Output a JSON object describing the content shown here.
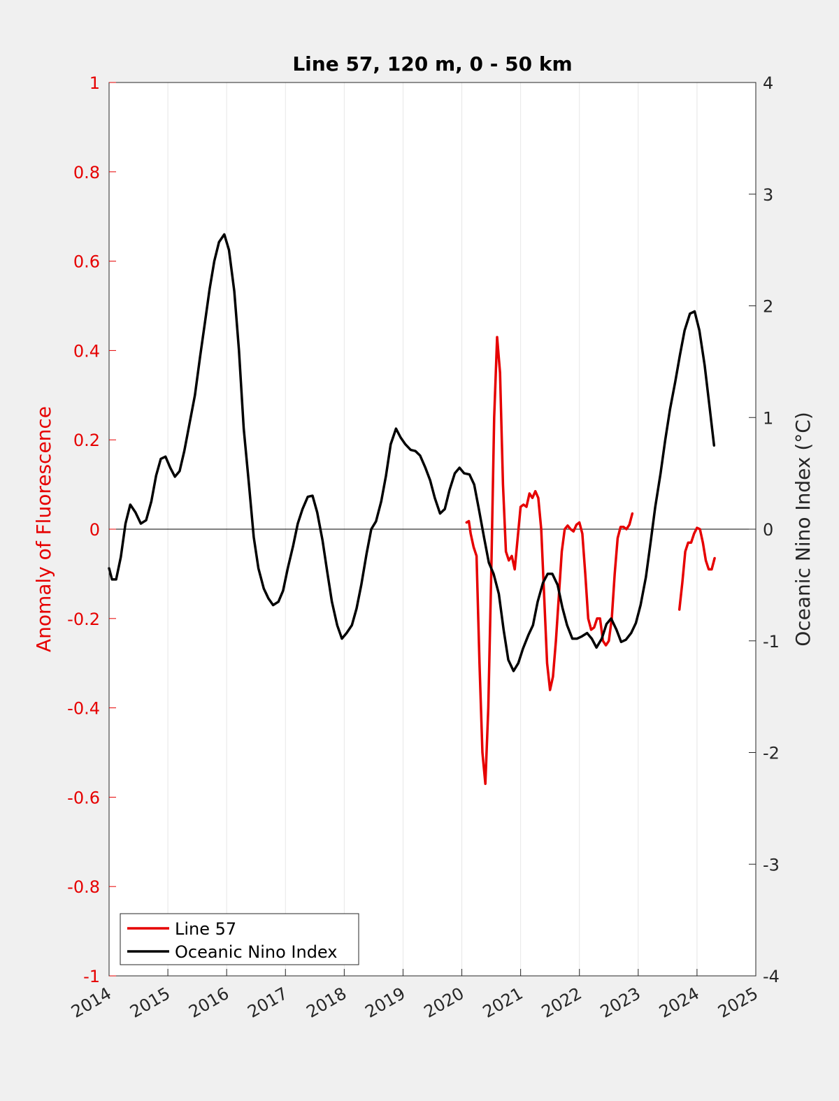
{
  "chart_data": {
    "type": "line",
    "title": "Line 57, 120 m, 0 - 50 km",
    "xlabel": "",
    "ylabel_left": "Anomaly of Fluorescence",
    "ylabel_right": "Oceanic Nino Index (°C)",
    "xlim": [
      2014,
      2025
    ],
    "ylim_left": [
      -1,
      1
    ],
    "ylim_right": [
      -4,
      4
    ],
    "x_ticks": [
      2014,
      2015,
      2016,
      2017,
      2018,
      2019,
      2020,
      2021,
      2022,
      2023,
      2024,
      2025
    ],
    "x_tick_labels": [
      "2014",
      "2015",
      "2016",
      "2017",
      "2018",
      "2019",
      "2020",
      "2021",
      "2022",
      "2023",
      "2024",
      "2025"
    ],
    "y_left_ticks": [
      -1,
      -0.8,
      -0.6,
      -0.4,
      -0.2,
      0,
      0.2,
      0.4,
      0.6,
      0.8,
      1
    ],
    "y_left_tick_labels": [
      "-1",
      "-0.8",
      "-0.6",
      "-0.4",
      "-0.2",
      "0",
      "0.2",
      "0.4",
      "0.6",
      "0.8",
      "1"
    ],
    "y_right_ticks": [
      -4,
      -3,
      -2,
      -1,
      0,
      1,
      2,
      3,
      4
    ],
    "y_right_tick_labels": [
      "-4",
      "-3",
      "-2",
      "-1",
      "0",
      "1",
      "2",
      "3",
      "4"
    ],
    "grid": "vertical",
    "legend_position": "bottom-left",
    "colors": {
      "line57": "#e60000",
      "oni": "#000000",
      "left_axis": "#e60000",
      "right_axis": "#262626"
    },
    "series": [
      {
        "name": "Line 57",
        "axis": "left",
        "segments": [
          [
            [
              2020.08,
              0.015
            ],
            [
              2020.12,
              0.018
            ],
            [
              2020.15,
              -0.01
            ],
            [
              2020.2,
              -0.04
            ],
            [
              2020.25,
              -0.06
            ],
            [
              2020.3,
              -0.3
            ],
            [
              2020.35,
              -0.5
            ],
            [
              2020.4,
              -0.57
            ],
            [
              2020.45,
              -0.4
            ],
            [
              2020.5,
              -0.1
            ],
            [
              2020.55,
              0.25
            ],
            [
              2020.6,
              0.43
            ],
            [
              2020.65,
              0.35
            ],
            [
              2020.7,
              0.1
            ],
            [
              2020.75,
              -0.05
            ],
            [
              2020.8,
              -0.07
            ],
            [
              2020.85,
              -0.06
            ],
            [
              2020.9,
              -0.09
            ],
            [
              2020.95,
              -0.02
            ],
            [
              2021.0,
              0.05
            ],
            [
              2021.05,
              0.055
            ],
            [
              2021.1,
              0.05
            ],
            [
              2021.15,
              0.08
            ],
            [
              2021.2,
              0.07
            ],
            [
              2021.25,
              0.085
            ],
            [
              2021.3,
              0.07
            ],
            [
              2021.35,
              0.0
            ],
            [
              2021.4,
              -0.15
            ],
            [
              2021.45,
              -0.3
            ],
            [
              2021.5,
              -0.36
            ],
            [
              2021.55,
              -0.33
            ],
            [
              2021.6,
              -0.25
            ],
            [
              2021.65,
              -0.15
            ],
            [
              2021.7,
              -0.05
            ],
            [
              2021.75,
              0.0
            ],
            [
              2021.8,
              0.008
            ],
            [
              2021.85,
              0.0
            ],
            [
              2021.9,
              -0.005
            ],
            [
              2021.95,
              0.01
            ],
            [
              2022.0,
              0.015
            ],
            [
              2022.05,
              -0.01
            ],
            [
              2022.1,
              -0.1
            ],
            [
              2022.15,
              -0.2
            ],
            [
              2022.2,
              -0.225
            ],
            [
              2022.25,
              -0.22
            ],
            [
              2022.3,
              -0.2
            ],
            [
              2022.35,
              -0.2
            ],
            [
              2022.4,
              -0.25
            ],
            [
              2022.45,
              -0.26
            ],
            [
              2022.5,
              -0.25
            ],
            [
              2022.55,
              -0.2
            ],
            [
              2022.6,
              -0.1
            ],
            [
              2022.65,
              -0.02
            ],
            [
              2022.7,
              0.005
            ],
            [
              2022.75,
              0.005
            ],
            [
              2022.8,
              0.0
            ],
            [
              2022.85,
              0.01
            ],
            [
              2022.9,
              0.035
            ]
          ],
          [
            [
              2023.7,
              -0.18
            ],
            [
              2023.75,
              -0.12
            ],
            [
              2023.8,
              -0.05
            ],
            [
              2023.85,
              -0.03
            ],
            [
              2023.9,
              -0.03
            ],
            [
              2023.95,
              -0.01
            ],
            [
              2024.0,
              0.003
            ],
            [
              2024.05,
              0.0
            ],
            [
              2024.1,
              -0.03
            ],
            [
              2024.15,
              -0.07
            ],
            [
              2024.2,
              -0.09
            ],
            [
              2024.25,
              -0.09
            ],
            [
              2024.3,
              -0.065
            ]
          ]
        ]
      },
      {
        "name": "Oceanic Nino Index",
        "axis": "right",
        "segments": [
          [
            [
              2014.0,
              -0.35
            ],
            [
              2014.05,
              -0.45
            ],
            [
              2014.12,
              -0.45
            ],
            [
              2014.2,
              -0.25
            ],
            [
              2014.28,
              0.05
            ],
            [
              2014.36,
              0.22
            ],
            [
              2014.45,
              0.15
            ],
            [
              2014.54,
              0.05
            ],
            [
              2014.63,
              0.08
            ],
            [
              2014.72,
              0.25
            ],
            [
              2014.8,
              0.48
            ],
            [
              2014.88,
              0.63
            ],
            [
              2014.96,
              0.65
            ],
            [
              2015.04,
              0.55
            ],
            [
              2015.12,
              0.47
            ],
            [
              2015.2,
              0.52
            ],
            [
              2015.28,
              0.7
            ],
            [
              2015.37,
              0.95
            ],
            [
              2015.46,
              1.2
            ],
            [
              2015.55,
              1.55
            ],
            [
              2015.63,
              1.85
            ],
            [
              2015.71,
              2.15
            ],
            [
              2015.79,
              2.4
            ],
            [
              2015.87,
              2.57
            ],
            [
              2015.96,
              2.64
            ],
            [
              2016.04,
              2.5
            ],
            [
              2016.13,
              2.13
            ],
            [
              2016.21,
              1.6
            ],
            [
              2016.29,
              0.9
            ],
            [
              2016.38,
              0.4
            ],
            [
              2016.46,
              -0.07
            ],
            [
              2016.54,
              -0.35
            ],
            [
              2016.63,
              -0.53
            ],
            [
              2016.71,
              -0.62
            ],
            [
              2016.79,
              -0.68
            ],
            [
              2016.88,
              -0.65
            ],
            [
              2016.96,
              -0.55
            ],
            [
              2017.04,
              -0.35
            ],
            [
              2017.13,
              -0.15
            ],
            [
              2017.21,
              0.05
            ],
            [
              2017.29,
              0.18
            ],
            [
              2017.38,
              0.29
            ],
            [
              2017.46,
              0.3
            ],
            [
              2017.54,
              0.15
            ],
            [
              2017.63,
              -0.1
            ],
            [
              2017.71,
              -0.38
            ],
            [
              2017.79,
              -0.65
            ],
            [
              2017.88,
              -0.86
            ],
            [
              2017.96,
              -0.98
            ],
            [
              2018.04,
              -0.93
            ],
            [
              2018.13,
              -0.86
            ],
            [
              2018.21,
              -0.71
            ],
            [
              2018.29,
              -0.5
            ],
            [
              2018.38,
              -0.22
            ],
            [
              2018.46,
              0.0
            ],
            [
              2018.54,
              0.07
            ],
            [
              2018.63,
              0.25
            ],
            [
              2018.71,
              0.48
            ],
            [
              2018.79,
              0.76
            ],
            [
              2018.88,
              0.9
            ],
            [
              2018.96,
              0.82
            ],
            [
              2019.04,
              0.76
            ],
            [
              2019.13,
              0.71
            ],
            [
              2019.21,
              0.7
            ],
            [
              2019.29,
              0.66
            ],
            [
              2019.38,
              0.55
            ],
            [
              2019.46,
              0.44
            ],
            [
              2019.54,
              0.28
            ],
            [
              2019.63,
              0.14
            ],
            [
              2019.71,
              0.18
            ],
            [
              2019.79,
              0.35
            ],
            [
              2019.88,
              0.5
            ],
            [
              2019.96,
              0.55
            ],
            [
              2020.04,
              0.5
            ],
            [
              2020.13,
              0.49
            ],
            [
              2020.21,
              0.4
            ],
            [
              2020.29,
              0.18
            ],
            [
              2020.38,
              -0.08
            ],
            [
              2020.46,
              -0.3
            ],
            [
              2020.54,
              -0.4
            ],
            [
              2020.63,
              -0.58
            ],
            [
              2020.71,
              -0.9
            ],
            [
              2020.79,
              -1.17
            ],
            [
              2020.88,
              -1.27
            ],
            [
              2020.96,
              -1.2
            ],
            [
              2021.04,
              -1.07
            ],
            [
              2021.13,
              -0.95
            ],
            [
              2021.21,
              -0.86
            ],
            [
              2021.29,
              -0.65
            ],
            [
              2021.38,
              -0.48
            ],
            [
              2021.46,
              -0.4
            ],
            [
              2021.54,
              -0.4
            ],
            [
              2021.63,
              -0.5
            ],
            [
              2021.71,
              -0.7
            ],
            [
              2021.79,
              -0.86
            ],
            [
              2021.88,
              -0.98
            ],
            [
              2021.96,
              -0.98
            ],
            [
              2022.04,
              -0.96
            ],
            [
              2022.13,
              -0.93
            ],
            [
              2022.21,
              -0.98
            ],
            [
              2022.29,
              -1.06
            ],
            [
              2022.38,
              -0.98
            ],
            [
              2022.46,
              -0.85
            ],
            [
              2022.54,
              -0.8
            ],
            [
              2022.63,
              -0.9
            ],
            [
              2022.71,
              -1.01
            ],
            [
              2022.79,
              -0.99
            ],
            [
              2022.88,
              -0.93
            ],
            [
              2022.96,
              -0.84
            ],
            [
              2023.04,
              -0.68
            ],
            [
              2023.13,
              -0.43
            ],
            [
              2023.21,
              -0.12
            ],
            [
              2023.29,
              0.2
            ],
            [
              2023.38,
              0.5
            ],
            [
              2023.46,
              0.8
            ],
            [
              2023.54,
              1.07
            ],
            [
              2023.63,
              1.32
            ],
            [
              2023.71,
              1.56
            ],
            [
              2023.79,
              1.78
            ],
            [
              2023.88,
              1.93
            ],
            [
              2023.96,
              1.95
            ],
            [
              2024.04,
              1.78
            ],
            [
              2024.13,
              1.47
            ],
            [
              2024.21,
              1.11
            ],
            [
              2024.29,
              0.75
            ]
          ]
        ]
      }
    ]
  }
}
